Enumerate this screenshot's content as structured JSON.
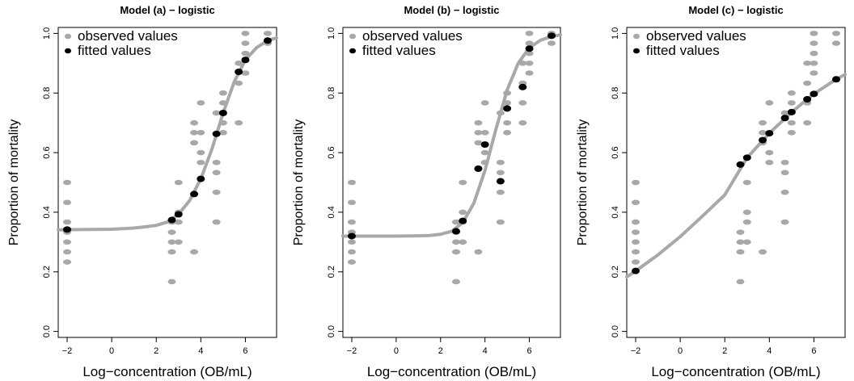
{
  "colors": {
    "observed": "#a8a8a8",
    "fitted": "#000000",
    "curve": "#a8a8a8"
  },
  "chart_data": [
    {
      "type": "scatter",
      "title": "Model (a) − logistic",
      "xlabel": "Log−concentration (OB/mL)",
      "ylabel": "Proportion of mortality",
      "xlim": [
        -2.4,
        7.4
      ],
      "ylim": [
        -0.02,
        1.02
      ],
      "xticks": [
        -2,
        0,
        2,
        4,
        6
      ],
      "yticks": [
        0.0,
        0.2,
        0.4,
        0.6,
        0.8,
        1.0
      ],
      "xtick_labels": [
        "−2",
        "0",
        "2",
        "4",
        "6"
      ],
      "ytick_labels": [
        "0.0",
        "0.2",
        "0.4",
        "0.6",
        "0.8",
        "1.0"
      ],
      "grid": false,
      "legend": {
        "position": "top-left",
        "entries": [
          {
            "label": "observed values",
            "series": "observed"
          },
          {
            "label": "fitted values",
            "series": "fitted"
          }
        ]
      },
      "observed": [
        {
          "x": -2,
          "y": [
            0.5,
            0.433,
            0.367,
            0.333,
            0.3,
            0.267,
            0.233
          ]
        },
        {
          "x": 2.7,
          "y": [
            0.367,
            0.333,
            0.3,
            0.267,
            0.167
          ]
        },
        {
          "x": 3,
          "y": [
            0.5,
            0.4,
            0.367,
            0.3
          ]
        },
        {
          "x": 3.7,
          "y": [
            0.7,
            0.667,
            0.633,
            0.267
          ]
        },
        {
          "x": 4,
          "y": [
            0.767,
            0.667,
            0.6,
            0.567
          ]
        },
        {
          "x": 4.7,
          "y": [
            0.733,
            0.567,
            0.533,
            0.467,
            0.367
          ]
        },
        {
          "x": 5,
          "y": [
            0.8,
            0.767,
            0.7,
            0.667
          ]
        },
        {
          "x": 5.7,
          "y": [
            0.9,
            0.833,
            0.7
          ]
        },
        {
          "x": 6,
          "y": [
            1.0,
            0.967,
            0.933,
            0.867
          ]
        },
        {
          "x": 7,
          "y": [
            1.0,
            0.967
          ]
        }
      ],
      "fitted": [
        {
          "x": -2,
          "y": 0.342
        },
        {
          "x": 2.7,
          "y": 0.374
        },
        {
          "x": 3,
          "y": 0.393
        },
        {
          "x": 3.7,
          "y": 0.461
        },
        {
          "x": 4,
          "y": 0.512
        },
        {
          "x": 4.7,
          "y": 0.663
        },
        {
          "x": 5,
          "y": 0.733
        },
        {
          "x": 5.7,
          "y": 0.871
        },
        {
          "x": 6,
          "y": 0.911
        },
        {
          "x": 7,
          "y": 0.976
        }
      ],
      "curve": [
        {
          "x": -2.4,
          "y": 0.341
        },
        {
          "x": -1,
          "y": 0.342
        },
        {
          "x": 0,
          "y": 0.343
        },
        {
          "x": 1,
          "y": 0.347
        },
        {
          "x": 1.5,
          "y": 0.351
        },
        {
          "x": 2,
          "y": 0.356
        },
        {
          "x": 2.5,
          "y": 0.367
        },
        {
          "x": 3,
          "y": 0.393
        },
        {
          "x": 3.5,
          "y": 0.44
        },
        {
          "x": 4,
          "y": 0.512
        },
        {
          "x": 4.5,
          "y": 0.612
        },
        {
          "x": 5,
          "y": 0.733
        },
        {
          "x": 5.5,
          "y": 0.838
        },
        {
          "x": 6,
          "y": 0.911
        },
        {
          "x": 6.5,
          "y": 0.952
        },
        {
          "x": 7,
          "y": 0.976
        },
        {
          "x": 7.4,
          "y": 0.985
        }
      ]
    },
    {
      "type": "scatter",
      "title": "Model (b) − logistic",
      "xlabel": "Log−concentration (OB/mL)",
      "ylabel": "Proportion of mortality",
      "xlim": [
        -2.4,
        7.4
      ],
      "ylim": [
        -0.02,
        1.02
      ],
      "xticks": [
        -2,
        0,
        2,
        4,
        6
      ],
      "yticks": [
        0.0,
        0.2,
        0.4,
        0.6,
        0.8,
        1.0
      ],
      "xtick_labels": [
        "−2",
        "0",
        "2",
        "4",
        "6"
      ],
      "ytick_labels": [
        "0.0",
        "0.2",
        "0.4",
        "0.6",
        "0.8",
        "1.0"
      ],
      "grid": false,
      "legend": {
        "position": "top-left",
        "entries": [
          {
            "label": "observed values",
            "series": "observed"
          },
          {
            "label": "fitted values",
            "series": "fitted"
          }
        ]
      },
      "observed": [
        {
          "x": -2,
          "y": [
            0.5,
            0.433,
            0.367,
            0.333,
            0.3,
            0.267,
            0.233
          ]
        },
        {
          "x": 2.7,
          "y": [
            0.367,
            0.333,
            0.3,
            0.267,
            0.167
          ]
        },
        {
          "x": 3,
          "y": [
            0.5,
            0.4,
            0.367,
            0.3
          ]
        },
        {
          "x": 3.7,
          "y": [
            0.7,
            0.667,
            0.633,
            0.267
          ]
        },
        {
          "x": 4,
          "y": [
            0.767,
            0.667,
            0.6,
            0.567
          ]
        },
        {
          "x": 4.7,
          "y": [
            0.733,
            0.567,
            0.533,
            0.467,
            0.367
          ]
        },
        {
          "x": 5,
          "y": [
            0.8,
            0.767,
            0.7,
            0.667
          ]
        },
        {
          "x": 5.7,
          "y": [
            0.9,
            0.833,
            0.767,
            0.7
          ]
        },
        {
          "x": 6,
          "y": [
            1.0,
            0.967,
            0.933,
            0.9,
            0.867
          ]
        },
        {
          "x": 7,
          "y": [
            1.0,
            0.967
          ]
        }
      ],
      "fitted": [
        {
          "x": -2,
          "y": 0.32
        },
        {
          "x": 2.7,
          "y": 0.336
        },
        {
          "x": 3,
          "y": 0.371
        },
        {
          "x": 3.7,
          "y": 0.546
        },
        {
          "x": 4,
          "y": 0.627
        },
        {
          "x": 4.7,
          "y": 0.504
        },
        {
          "x": 5,
          "y": 0.748
        },
        {
          "x": 5.7,
          "y": 0.82
        },
        {
          "x": 6,
          "y": 0.949
        },
        {
          "x": 7,
          "y": 0.992
        }
      ],
      "curve": [
        {
          "x": -2.4,
          "y": 0.32
        },
        {
          "x": -1,
          "y": 0.32
        },
        {
          "x": 0,
          "y": 0.32
        },
        {
          "x": 1,
          "y": 0.321
        },
        {
          "x": 1.5,
          "y": 0.322
        },
        {
          "x": 2,
          "y": 0.326
        },
        {
          "x": 2.5,
          "y": 0.336
        },
        {
          "x": 3,
          "y": 0.365
        },
        {
          "x": 3.5,
          "y": 0.43
        },
        {
          "x": 4,
          "y": 0.54
        },
        {
          "x": 4.5,
          "y": 0.68
        },
        {
          "x": 5,
          "y": 0.81
        },
        {
          "x": 5.5,
          "y": 0.9
        },
        {
          "x": 6,
          "y": 0.952
        },
        {
          "x": 6.5,
          "y": 0.977
        },
        {
          "x": 7,
          "y": 0.99
        },
        {
          "x": 7.4,
          "y": 0.995
        }
      ]
    },
    {
      "type": "scatter",
      "title": "Model (c) − logistic",
      "xlabel": "Log−concentration (OB/mL)",
      "ylabel": "Proportion of mortality",
      "xlim": [
        -2.4,
        7.4
      ],
      "ylim": [
        -0.02,
        1.02
      ],
      "xticks": [
        -2,
        0,
        2,
        4,
        6
      ],
      "yticks": [
        0.0,
        0.2,
        0.4,
        0.6,
        0.8,
        1.0
      ],
      "xtick_labels": [
        "−2",
        "0",
        "2",
        "4",
        "6"
      ],
      "ytick_labels": [
        "0.0",
        "0.2",
        "0.4",
        "0.6",
        "0.8",
        "1.0"
      ],
      "grid": false,
      "legend": {
        "position": "top-left",
        "entries": [
          {
            "label": "observed values",
            "series": "observed"
          },
          {
            "label": "fitted values",
            "series": "fitted"
          }
        ]
      },
      "observed": [
        {
          "x": -2,
          "y": [
            0.5,
            0.433,
            0.367,
            0.333,
            0.3,
            0.267,
            0.233
          ]
        },
        {
          "x": 2.7,
          "y": [
            0.333,
            0.3,
            0.267,
            0.167
          ]
        },
        {
          "x": 3,
          "y": [
            0.5,
            0.4,
            0.367,
            0.3
          ]
        },
        {
          "x": 3.7,
          "y": [
            0.7,
            0.667,
            0.633,
            0.267
          ]
        },
        {
          "x": 4,
          "y": [
            0.767,
            0.667,
            0.6,
            0.567
          ]
        },
        {
          "x": 4.7,
          "y": [
            0.733,
            0.567,
            0.533,
            0.467,
            0.367
          ]
        },
        {
          "x": 5,
          "y": [
            0.8,
            0.767,
            0.7,
            0.667
          ]
        },
        {
          "x": 5.7,
          "y": [
            0.9,
            0.833,
            0.767,
            0.7
          ]
        },
        {
          "x": 6,
          "y": [
            1.0,
            0.967,
            0.933,
            0.9,
            0.867
          ]
        },
        {
          "x": 7,
          "y": [
            1.0,
            0.967
          ]
        }
      ],
      "fitted": [
        {
          "x": -2,
          "y": 0.203
        },
        {
          "x": 2.7,
          "y": 0.56
        },
        {
          "x": 3,
          "y": 0.583
        },
        {
          "x": 3.7,
          "y": 0.642
        },
        {
          "x": 4,
          "y": 0.665
        },
        {
          "x": 4.7,
          "y": 0.716
        },
        {
          "x": 5,
          "y": 0.736
        },
        {
          "x": 5.7,
          "y": 0.779
        },
        {
          "x": 6,
          "y": 0.797
        },
        {
          "x": 7,
          "y": 0.846
        }
      ],
      "curve": [
        {
          "x": -2.4,
          "y": 0.183
        },
        {
          "x": -2,
          "y": 0.203
        },
        {
          "x": -1,
          "y": 0.257
        },
        {
          "x": 0,
          "y": 0.318
        },
        {
          "x": 1,
          "y": 0.387
        },
        {
          "x": 2,
          "y": 0.458
        },
        {
          "x": 3,
          "y": 0.583
        },
        {
          "x": 4,
          "y": 0.665
        },
        {
          "x": 5,
          "y": 0.736
        },
        {
          "x": 6,
          "y": 0.797
        },
        {
          "x": 7,
          "y": 0.846
        },
        {
          "x": 7.4,
          "y": 0.862
        }
      ]
    }
  ]
}
